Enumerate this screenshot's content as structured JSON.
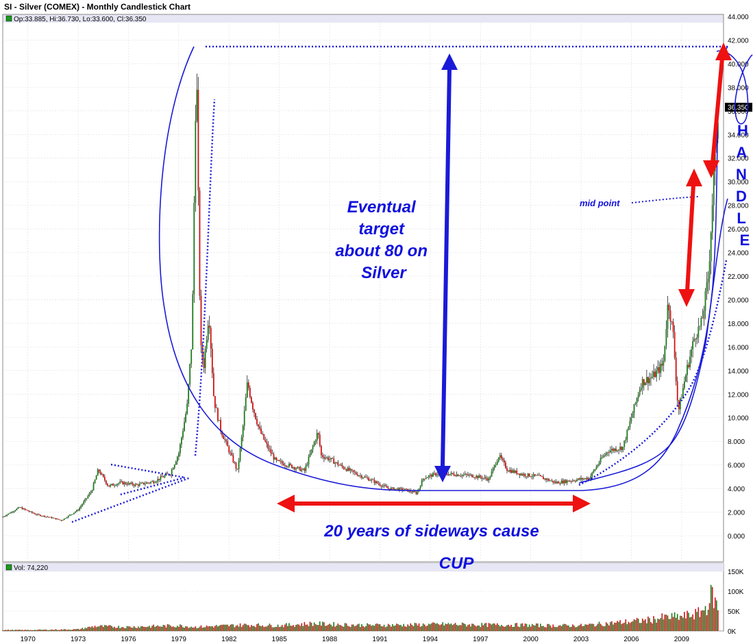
{
  "chart_title": "SI - Silver (COMEX) - Monthly Candlestick Chart",
  "ohlc_readout": "Op:33.885, Hi:36.730, Lo:33.600, Cl:36.350",
  "volume_readout": "Vol: 74,220",
  "last_price_tag": "36.350",
  "annotations": {
    "target": [
      "Eventual",
      "target",
      "about 80 on",
      "Silver"
    ],
    "sideways": "20 years of sideways cause",
    "cup": "CUP",
    "handle": [
      "H",
      "A",
      "N",
      "D",
      "L",
      "E"
    ],
    "mid_point": "mid point"
  },
  "colors": {
    "up_candle": "#1a7a1a",
    "down_candle": "#d01010",
    "annotation_blue": "#1010dd",
    "annotation_red": "#ee1111",
    "header_band": "#e6e6f5"
  },
  "chart_data": [
    {
      "type": "candlestick",
      "title": "SI - Silver (COMEX) - Monthly Candlestick Chart",
      "ylim": [
        0,
        44
      ],
      "y_ticks": [
        "0.000",
        "2.000",
        "4.000",
        "6.000",
        "8.000",
        "10.000",
        "12.000",
        "14.000",
        "16.000",
        "18.000",
        "20.000",
        "22.000",
        "24.000",
        "26.000",
        "28.000",
        "30.000",
        "32.000",
        "34.000",
        "36.000",
        "38.000",
        "40.000",
        "42.000",
        "44.000"
      ],
      "x_ticks": [
        "1970",
        "1973",
        "1976",
        "1979",
        "1982",
        "1985",
        "1988",
        "1991",
        "1994",
        "1997",
        "2000",
        "2003",
        "2006",
        "2009"
      ],
      "x_range": [
        1968.5,
        2011.5
      ],
      "grid": true,
      "series": [
        {
          "x": [
            1968.5,
            1969.5,
            1970.5,
            1971.5,
            1972.0,
            1973.0,
            1973.8,
            1974.2,
            1974.8,
            1975.5,
            1976.5,
            1977.5,
            1978.5,
            1979.0,
            1979.5,
            1979.8,
            1980.05,
            1980.15,
            1980.3,
            1980.5,
            1980.8,
            1981.1,
            1981.5,
            1982.0,
            1982.5,
            1982.8,
            1983.1,
            1983.4,
            1983.8,
            1984.3,
            1984.8,
            1985.5,
            1986.5,
            1987.3,
            1987.5,
            1988.0,
            1988.8,
            1989.5,
            1990.5,
            1991.5,
            1992.5,
            1993.2,
            1993.6,
            1994.5,
            1995.5,
            1996.5,
            1997.5,
            1998.1,
            1998.6,
            1999.5,
            2000.5,
            2001.5,
            2002.5,
            2003.5,
            2004.2,
            2004.6,
            2005.5,
            2006.3,
            2006.6,
            2007.3,
            2007.9,
            2008.2,
            2008.5,
            2008.8,
            2009.3,
            2009.8,
            2010.2,
            2010.6,
            2010.9,
            2011.1,
            2011.2
          ],
          "y": [
            1.6,
            2.4,
            1.8,
            1.5,
            1.3,
            2.2,
            3.8,
            5.6,
            4.2,
            4.5,
            4.3,
            4.6,
            5.3,
            7.0,
            11.0,
            17.0,
            41.0,
            30.0,
            16.0,
            14.5,
            19.0,
            11.5,
            9.0,
            7.2,
            5.5,
            8.8,
            13.0,
            11.0,
            9.0,
            7.5,
            6.3,
            6.0,
            5.5,
            8.8,
            6.8,
            6.5,
            5.8,
            5.3,
            4.7,
            4.0,
            3.9,
            3.6,
            4.9,
            5.3,
            5.2,
            5.1,
            4.8,
            6.8,
            5.6,
            5.2,
            5.0,
            4.5,
            4.7,
            4.9,
            6.5,
            7.2,
            7.5,
            11.5,
            13.0,
            13.5,
            14.5,
            20.0,
            17.0,
            10.5,
            14.0,
            17.0,
            18.0,
            22.0,
            30.0,
            34.5,
            36.35
          ]
        }
      ]
    },
    {
      "type": "bar",
      "title": "Vol: 74,220",
      "ylim": [
        0,
        150000
      ],
      "y_ticks": [
        "0K",
        "50K",
        "100K",
        "150K"
      ],
      "series": [
        {
          "x": [
            1970,
            1973,
            1974,
            1976,
            1979,
            1980,
            1981,
            1983,
            1985,
            1987,
            1988,
            1990,
            1993,
            1995,
            1997,
            1999,
            2001,
            2003,
            2005,
            2007,
            2008,
            2009,
            2010,
            2010.5,
            2010.8,
            2011.1
          ],
          "values": [
            3000,
            5000,
            14000,
            12000,
            16000,
            12000,
            14000,
            18000,
            16000,
            22000,
            20000,
            17000,
            18000,
            20000,
            18000,
            18000,
            16000,
            16000,
            24000,
            32000,
            40000,
            42000,
            52000,
            70000,
            110000,
            74220
          ]
        }
      ]
    }
  ]
}
